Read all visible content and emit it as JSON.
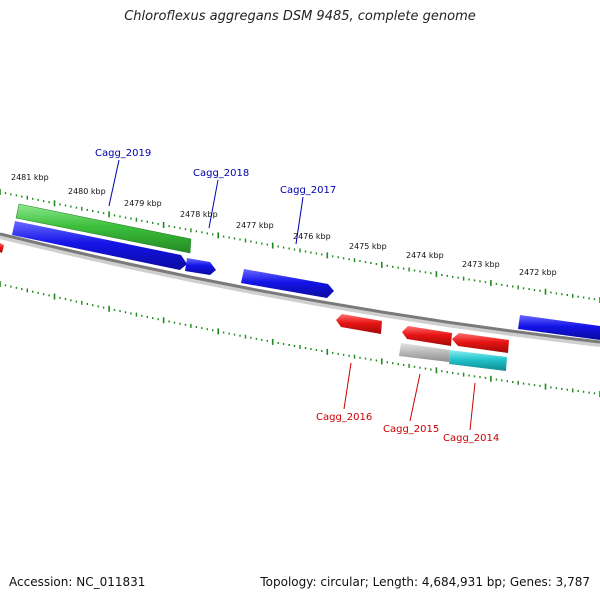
{
  "title": "Chloroflexus aggregans DSM 9485, complete genome",
  "footer": {
    "accession": "Accession: NC_011831",
    "summary": "Topology: circular; Length: 4,684,931 bp; Genes: 3,787"
  },
  "colors": {
    "backbone": "#7a7a7a",
    "ticks": "#1e8a1e",
    "forward_gene": "#1010e0",
    "reverse_gene": "#e01010",
    "rna_gene": "#3ab83a",
    "pseudo_gene": "#b0b0b0",
    "cyan_gene": "#20c0c8",
    "forward_label": "#0000aa",
    "reverse_label": "#cc0000"
  },
  "scale_labels": [
    "2481 kbp",
    "2480 kbp",
    "2479 kbp",
    "2478 kbp",
    "2477 kbp",
    "2476 kbp",
    "2475 kbp",
    "2474 kbp",
    "2473 kbp",
    "2472 kbp"
  ],
  "gene_labels": {
    "forward": [
      "Cagg_2019",
      "Cagg_2018",
      "Cagg_2017"
    ],
    "reverse": [
      "Cagg_2016",
      "Cagg_2015",
      "Cagg_2014"
    ]
  }
}
